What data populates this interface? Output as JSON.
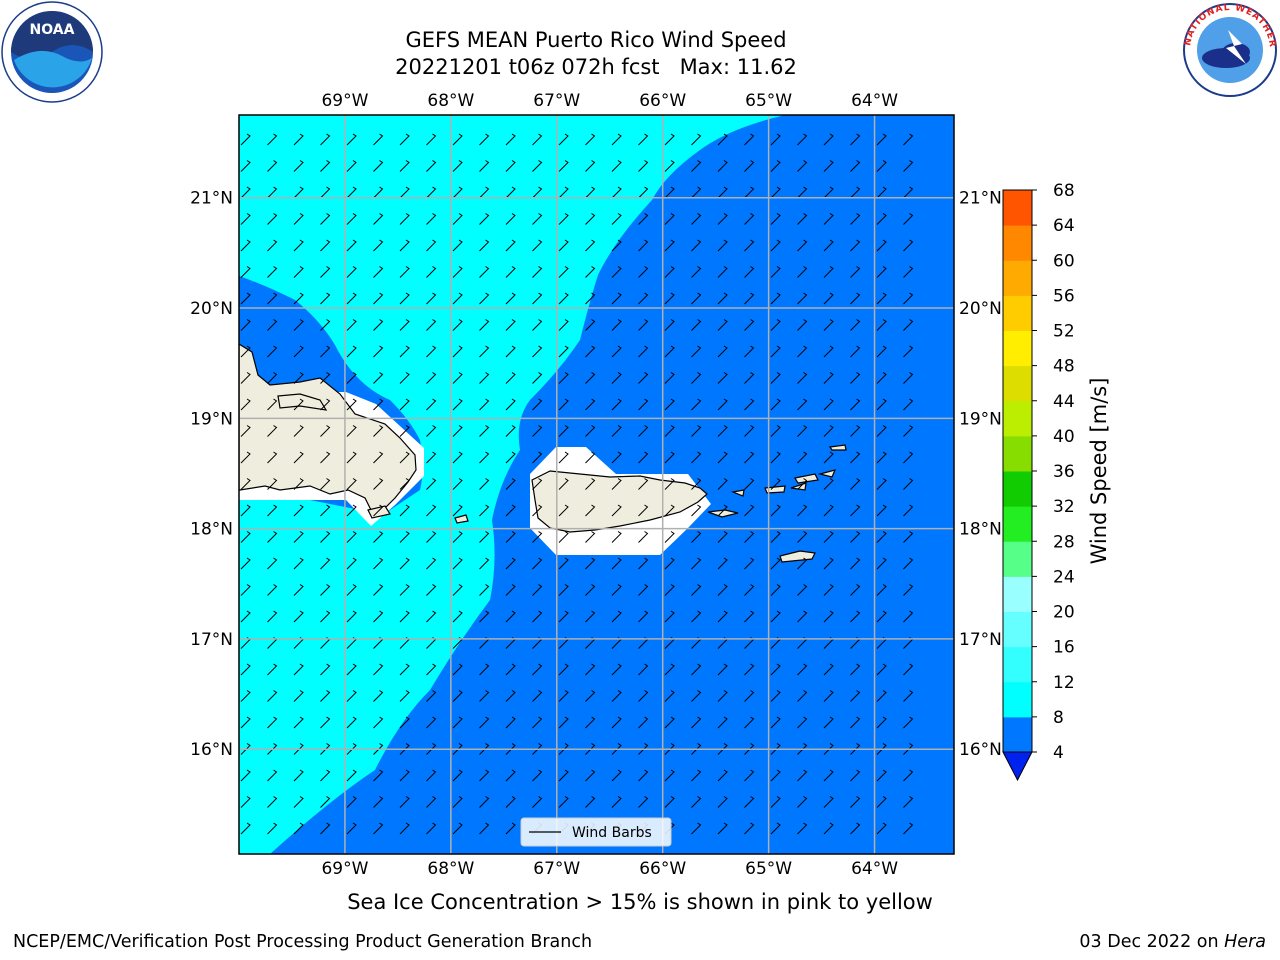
{
  "title": {
    "line1": "GEFS MEAN Puerto Rico Wind Speed",
    "line2": "20221201 t06z 072h fcst   Max: 11.62"
  },
  "axes": {
    "lon_labels": [
      "69°W",
      "68°W",
      "67°W",
      "66°W",
      "65°W",
      "64°W"
    ],
    "lon_values": [
      -69,
      -68,
      -67,
      -66,
      -65,
      -64
    ],
    "lat_labels": [
      "21°N",
      "20°N",
      "19°N",
      "18°N",
      "17°N",
      "16°N"
    ],
    "lat_values": [
      21,
      20,
      19,
      18,
      17,
      16
    ],
    "lon_range": [
      -70,
      -63.25
    ],
    "lat_range": [
      15.05,
      21.75
    ]
  },
  "legend": {
    "label": "Wind Barbs"
  },
  "colorbar": {
    "label": "Wind Speed [m/s]",
    "ticks": [
      4,
      8,
      12,
      16,
      20,
      24,
      28,
      32,
      36,
      40,
      44,
      48,
      52,
      56,
      60,
      64,
      68
    ],
    "colors": [
      "#0077ff",
      "#00ffff",
      "#33ffff",
      "#66ffff",
      "#99ffff",
      "#55ff88",
      "#22ee22",
      "#11cc00",
      "#88dd00",
      "#bbee00",
      "#dddd00",
      "#ffee00",
      "#ffcc00",
      "#ffaa00",
      "#ff8800",
      "#ff5500",
      "#ff2200",
      "#ff0000"
    ],
    "under_color": "#0022ee"
  },
  "field_colors": {
    "zone_4_8": "#0077ff",
    "zone_8_12": "#00ffff",
    "land": "#efeede",
    "masked": "#ffffff"
  },
  "footer": {
    "note": "Sea Ice Concentration > 15% is shown in pink to yellow",
    "left": "NCEP/EMC/Verification Post Processing Product Generation Branch",
    "right_date": "03 Dec 2022 on",
    "right_host": "Hera"
  },
  "logos": {
    "noaa": {
      "icon": "noaa-logo",
      "text": "NOAA"
    },
    "nws": {
      "icon": "nws-logo",
      "text": "NATIONAL WEATHER SERVICE"
    }
  }
}
